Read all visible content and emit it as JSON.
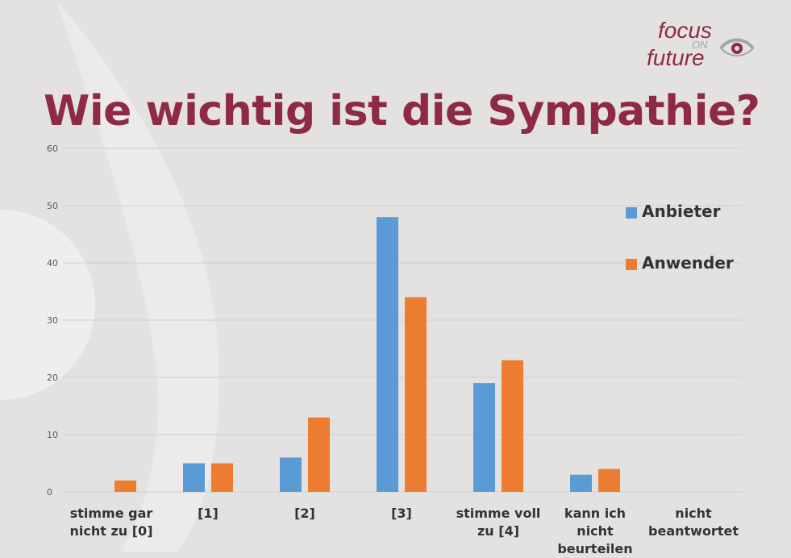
{
  "logo": {
    "line1": "focus",
    "line2": "ON",
    "line3": "future"
  },
  "title": "Wie wichtig ist die Sympathie?",
  "colors": {
    "anbieter": "#5b9bd5",
    "anwender": "#ed7d31",
    "title": "#8e2a45",
    "background": "#e4e2e1"
  },
  "chart_data": {
    "type": "bar",
    "categories": [
      "stimme gar nicht zu [0]",
      "[1]",
      "[2]",
      "[3]",
      "stimme voll zu [4]",
      "kann ich nicht beurteilen",
      "nicht beantwortet"
    ],
    "series": [
      {
        "name": "Anbieter",
        "values": [
          0,
          5,
          6,
          48,
          19,
          3,
          0
        ]
      },
      {
        "name": "Anwender",
        "values": [
          2,
          5,
          13,
          34,
          23,
          4,
          0
        ]
      }
    ],
    "ylim": [
      0,
      60
    ],
    "yticks": [
      "0",
      "10",
      "20",
      "30",
      "40",
      "50",
      "60"
    ],
    "grid": true,
    "legend_position": "right",
    "xlabel": "",
    "ylabel": ""
  }
}
